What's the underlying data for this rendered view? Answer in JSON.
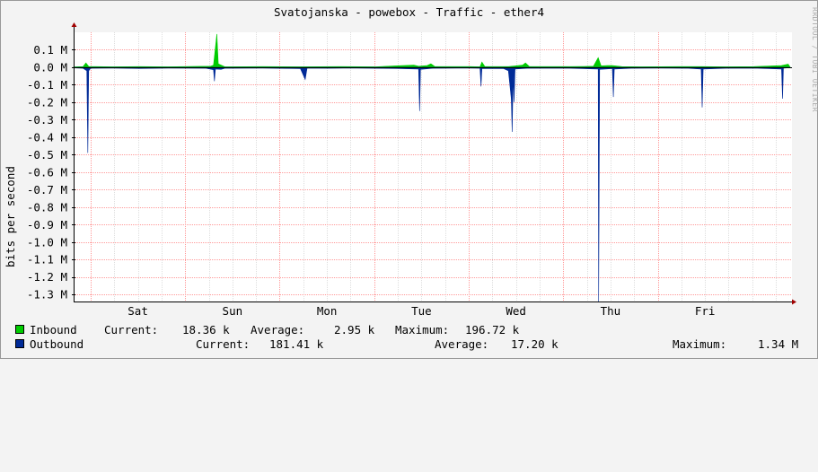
{
  "title": "Svatojanska - powebox - Traffic - ether4",
  "watermark": "RRDTOOL / TOBI OETIKER",
  "ylabel": "bits per second",
  "chart_data": {
    "type": "area",
    "y_ticks": [
      {
        "value": 0.1,
        "label": "0.1 M"
      },
      {
        "value": 0.0,
        "label": "0.0 M"
      },
      {
        "value": -0.1,
        "label": "-0.1 M"
      },
      {
        "value": -0.2,
        "label": "-0.2 M"
      },
      {
        "value": -0.3,
        "label": "-0.3 M"
      },
      {
        "value": -0.4,
        "label": "-0.4 M"
      },
      {
        "value": -0.5,
        "label": "-0.5 M"
      },
      {
        "value": -0.6,
        "label": "-0.6 M"
      },
      {
        "value": -0.7,
        "label": "-0.7 M"
      },
      {
        "value": -0.8,
        "label": "-0.8 M"
      },
      {
        "value": -0.9,
        "label": "-0.9 M"
      },
      {
        "value": -1.0,
        "label": "-1.0 M"
      },
      {
        "value": -1.1,
        "label": "-1.1 M"
      },
      {
        "value": -1.2,
        "label": "-1.2 M"
      },
      {
        "value": -1.3,
        "label": "-1.3 M"
      }
    ],
    "ylim": [
      -1.34,
      0.2
    ],
    "x_days": [
      "Sat",
      "Sun",
      "Mon",
      "Tue",
      "Wed",
      "Thu",
      "Fri"
    ],
    "xlim": [
      0,
      7.6
    ],
    "day_positions": [
      0.68,
      1.68,
      2.68,
      3.68,
      4.68,
      5.68,
      6.68
    ],
    "grid": true,
    "series": [
      {
        "name": "Inbound",
        "color": "#00cc00",
        "points": [
          [
            0.0,
            0.002
          ],
          [
            0.1,
            0.004
          ],
          [
            0.13,
            0.025
          ],
          [
            0.16,
            0.005
          ],
          [
            0.4,
            0.003
          ],
          [
            0.7,
            0.004
          ],
          [
            1.0,
            0.003
          ],
          [
            1.25,
            0.005
          ],
          [
            1.45,
            0.006
          ],
          [
            1.48,
            0.012
          ],
          [
            1.515,
            0.19
          ],
          [
            1.53,
            0.02
          ],
          [
            1.6,
            0.003
          ],
          [
            2.0,
            0.004
          ],
          [
            2.4,
            0.003
          ],
          [
            2.8,
            0.004
          ],
          [
            3.2,
            0.003
          ],
          [
            3.4,
            0.008
          ],
          [
            3.6,
            0.012
          ],
          [
            3.65,
            0.006
          ],
          [
            3.74,
            0.01
          ],
          [
            3.78,
            0.02
          ],
          [
            3.82,
            0.005
          ],
          [
            4.2,
            0.004
          ],
          [
            4.3,
            0.003
          ],
          [
            4.32,
            0.03
          ],
          [
            4.35,
            0.005
          ],
          [
            4.6,
            0.004
          ],
          [
            4.75,
            0.012
          ],
          [
            4.78,
            0.025
          ],
          [
            4.82,
            0.005
          ],
          [
            5.2,
            0.004
          ],
          [
            5.4,
            0.005
          ],
          [
            5.5,
            0.006
          ],
          [
            5.55,
            0.055
          ],
          [
            5.58,
            0.008
          ],
          [
            5.65,
            0.01
          ],
          [
            5.7,
            0.01
          ],
          [
            5.8,
            0.004
          ],
          [
            6.0,
            0.003
          ],
          [
            6.4,
            0.004
          ],
          [
            6.65,
            0.004
          ],
          [
            6.9,
            0.003
          ],
          [
            7.2,
            0.004
          ],
          [
            7.49,
            0.01
          ],
          [
            7.56,
            0.018
          ],
          [
            7.58,
            0.002
          ]
        ]
      },
      {
        "name": "Outbound",
        "color": "#002a97",
        "points": [
          [
            0.0,
            -0.004
          ],
          [
            0.1,
            -0.006
          ],
          [
            0.14,
            -0.02
          ],
          [
            0.15,
            -0.49
          ],
          [
            0.16,
            -0.02
          ],
          [
            0.18,
            -0.006
          ],
          [
            0.4,
            -0.005
          ],
          [
            0.7,
            -0.007
          ],
          [
            1.0,
            -0.005
          ],
          [
            1.4,
            -0.006
          ],
          [
            1.48,
            -0.014
          ],
          [
            1.49,
            -0.08
          ],
          [
            1.5,
            -0.01
          ],
          [
            1.56,
            -0.012
          ],
          [
            1.6,
            -0.006
          ],
          [
            2.0,
            -0.005
          ],
          [
            2.4,
            -0.008
          ],
          [
            2.45,
            -0.07
          ],
          [
            2.47,
            -0.005
          ],
          [
            2.7,
            -0.006
          ],
          [
            3.0,
            -0.005
          ],
          [
            3.4,
            -0.007
          ],
          [
            3.65,
            -0.01
          ],
          [
            3.66,
            -0.25
          ],
          [
            3.67,
            -0.012
          ],
          [
            3.8,
            -0.006
          ],
          [
            4.2,
            -0.005
          ],
          [
            4.3,
            -0.006
          ],
          [
            4.31,
            -0.11
          ],
          [
            4.32,
            -0.007
          ],
          [
            4.55,
            -0.008
          ],
          [
            4.6,
            -0.02
          ],
          [
            4.63,
            -0.18
          ],
          [
            4.64,
            -0.37
          ],
          [
            4.65,
            -0.05
          ],
          [
            4.66,
            -0.2
          ],
          [
            4.67,
            -0.01
          ],
          [
            4.8,
            -0.006
          ],
          [
            5.2,
            -0.005
          ],
          [
            5.55,
            -0.01
          ],
          [
            5.555,
            -1.34
          ],
          [
            5.565,
            -0.012
          ],
          [
            5.7,
            -0.008
          ],
          [
            5.71,
            -0.17
          ],
          [
            5.72,
            -0.01
          ],
          [
            5.9,
            -0.006
          ],
          [
            6.2,
            -0.005
          ],
          [
            6.5,
            -0.006
          ],
          [
            6.64,
            -0.01
          ],
          [
            6.65,
            -0.23
          ],
          [
            6.66,
            -0.01
          ],
          [
            6.9,
            -0.006
          ],
          [
            7.2,
            -0.005
          ],
          [
            7.49,
            -0.01
          ],
          [
            7.5,
            -0.18
          ],
          [
            7.51,
            -0.005
          ],
          [
            7.58,
            -0.003
          ]
        ]
      }
    ],
    "legend": [
      {
        "name": "Inbound",
        "current_label": "Current:",
        "current": "18.36 k",
        "average_label": "Average:",
        "average": "2.95 k",
        "maximum_label": "Maximum:",
        "maximum": "196.72 k"
      },
      {
        "name": "Outbound",
        "current_label": "Current:",
        "current": "181.41 k",
        "average_label": "Average:",
        "average": "17.20 k",
        "maximum_label": "Maximum:",
        "maximum": "1.34 M"
      }
    ]
  }
}
